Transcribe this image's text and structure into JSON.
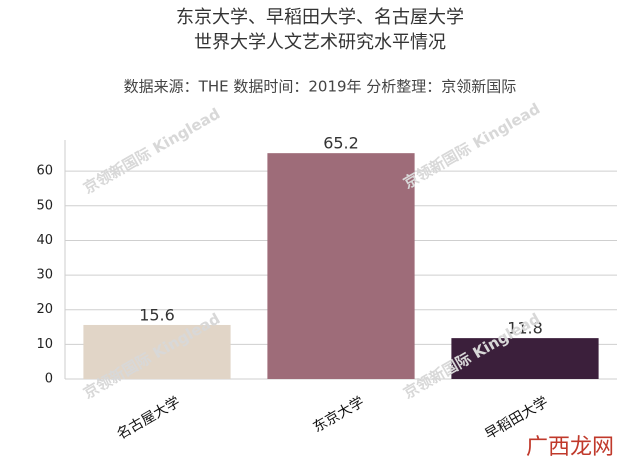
{
  "chart_data": {
    "type": "bar",
    "title": [
      "东京大学、早稻田大学、名古屋大学",
      "世界大学人文艺术研究水平情况"
    ],
    "subtitle": "数据来源：THE 数据时间：2019年 分析整理：京领新国际",
    "categories": [
      "名古屋大学",
      "东京大学",
      "早稻田大学"
    ],
    "values": [
      15.6,
      65.2,
      11.8
    ],
    "colors": [
      "#e1d5c7",
      "#9e6c79",
      "#3b1f3b"
    ],
    "ylim": [
      0,
      69
    ],
    "yticks": [
      0,
      10,
      20,
      30,
      40,
      50,
      60
    ],
    "grid": true,
    "watermark": "京领新国际 Kinglead",
    "logo": "广西龙网"
  }
}
